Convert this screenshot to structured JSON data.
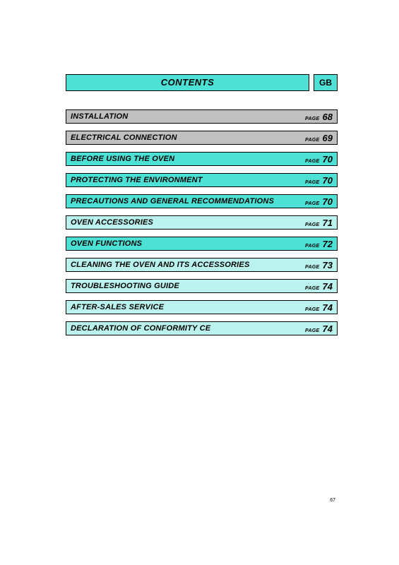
{
  "header": {
    "contents_label": "CONTENTS",
    "lang_label": "GB"
  },
  "colors": {
    "grey": "#c0c0c0",
    "cyan_strong": "#4de1d5",
    "cyan_light": "#baf3ed"
  },
  "page_label": "PAGE",
  "toc": [
    {
      "title": "INSTALLATION",
      "page": "68",
      "color": "grey"
    },
    {
      "title": "ELECTRICAL CONNECTION",
      "page": "69",
      "color": "grey"
    },
    {
      "title": "BEFORE USING THE OVEN",
      "page": "70",
      "color": "cyan_strong"
    },
    {
      "title": "PROTECTING THE ENVIRONMENT",
      "page": "70",
      "color": "cyan_strong"
    },
    {
      "title": "PRECAUTIONS AND GENERAL RECOMMENDATIONS",
      "page": "70",
      "color": "cyan_strong"
    },
    {
      "title": "OVEN ACCESSORIES",
      "page": "71",
      "color": "cyan_light"
    },
    {
      "title": "OVEN FUNCTIONS",
      "page": "72",
      "color": "cyan_strong"
    },
    {
      "title": "CLEANING THE OVEN AND ITS ACCESSORIES",
      "page": "73",
      "color": "cyan_light"
    },
    {
      "title": "TROUBLESHOOTING GUIDE",
      "page": "74",
      "color": "cyan_light"
    },
    {
      "title": "AFTER-SALES SERVICE",
      "page": "74",
      "color": "cyan_light"
    },
    {
      "title": "DECLARATION OF CONFORMITY CE",
      "page": "74",
      "color": "cyan_light"
    }
  ],
  "footer": {
    "page_number": "67"
  }
}
